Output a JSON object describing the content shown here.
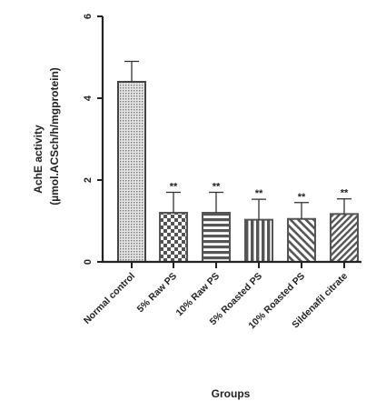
{
  "chart_data": {
    "type": "bar",
    "title": "",
    "xlabel": "Groups",
    "ylabel_line1": "AchE activity",
    "ylabel_line2": "(µmol.ACSch/h/mgprotein)",
    "ylim": [
      0,
      6
    ],
    "yticks": [
      0,
      2,
      4,
      6
    ],
    "categories": [
      "Normal control",
      "5% Raw PS",
      "10% Raw PS",
      "5% Roasted PS",
      "10% Roasted PS",
      "Sildenafil citrate"
    ],
    "values": [
      4.4,
      1.2,
      1.2,
      1.03,
      1.05,
      1.17
    ],
    "errors": [
      0.5,
      0.5,
      0.5,
      0.5,
      0.4,
      0.37
    ],
    "significance": [
      "",
      "**",
      "**",
      "**",
      "**",
      "**"
    ],
    "patterns": [
      "dots",
      "checker",
      "horizontal-lines",
      "vertical-lines",
      "diagonal-lines",
      "diagonal-lines-dense"
    ],
    "colors": {
      "bar_fill": "#555555",
      "axis": "#222222",
      "control_fill": "#d4d4d4"
    }
  }
}
